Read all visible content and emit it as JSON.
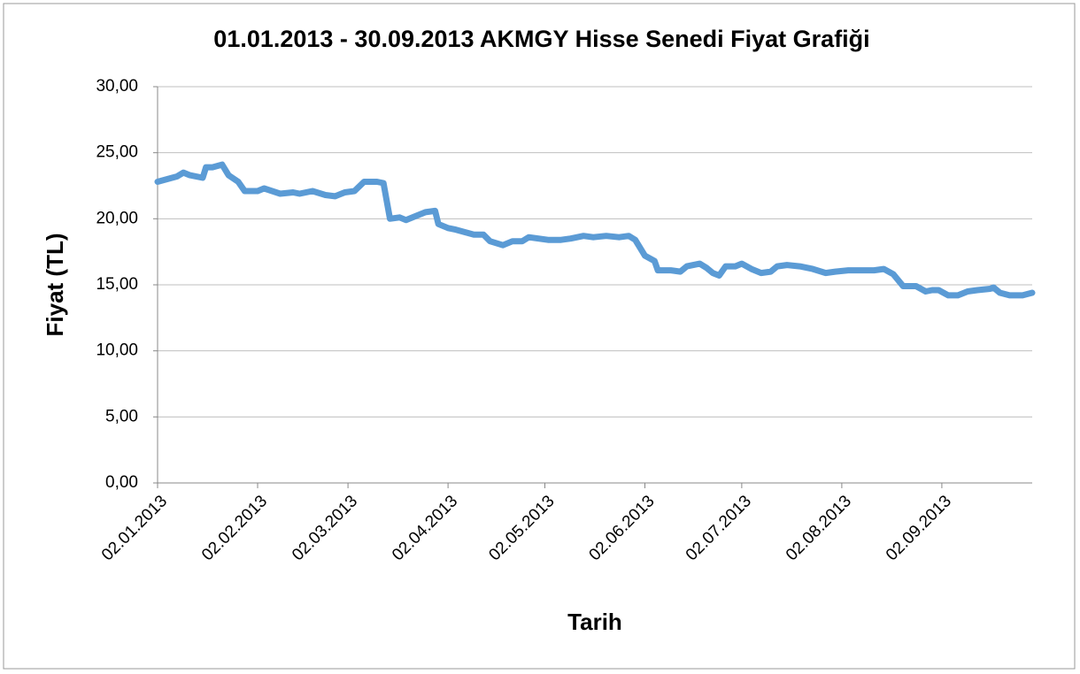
{
  "chart_data": {
    "type": "line",
    "title": "01.01.2013 - 30.09.2013 AKMGY Hisse Senedi Fiyat Grafiği",
    "x_label": "Tarih",
    "y_label": "Fiyat (TL)",
    "x": [
      "02.01.2013",
      "05.01.2013",
      "08.01.2013",
      "10.01.2013",
      "12.01.2013",
      "16.01.2013",
      "17.01.2013",
      "19.01.2013",
      "22.01.2013",
      "24.01.2013",
      "27.01.2013",
      "29.01.2013",
      "02.02.2013",
      "04.02.2013",
      "09.02.2013",
      "13.02.2013",
      "15.02.2013",
      "19.02.2013",
      "23.02.2013",
      "26.02.2013",
      "01.03.2013",
      "04.03.2013",
      "07.03.2013",
      "11.03.2013",
      "13.03.2013",
      "15.03.2013",
      "18.03.2013",
      "20.03.2013",
      "23.03.2013",
      "26.03.2013",
      "29.03.2013",
      "30.03.2013",
      "02.04.2013",
      "04.04.2013",
      "07.04.2013",
      "10.04.2013",
      "13.04.2013",
      "15.04.2013",
      "19.04.2013",
      "22.04.2013",
      "25.04.2013",
      "27.04.2013",
      "30.04.2013",
      "03.05.2013",
      "07.05.2013",
      "10.05.2013",
      "14.05.2013",
      "17.05.2013",
      "21.05.2013",
      "25.05.2013",
      "28.05.2013",
      "30.05.2013",
      "02.06.2013",
      "05.06.2013",
      "06.06.2013",
      "10.06.2013",
      "13.06.2013",
      "15.06.2013",
      "17.06.2013",
      "19.06.2013",
      "21.06.2013",
      "23.06.2013",
      "25.06.2013",
      "27.06.2013",
      "30.06.2013",
      "02.07.2013",
      "05.07.2013",
      "08.07.2013",
      "11.07.2013",
      "13.07.2013",
      "16.07.2013",
      "20.07.2013",
      "24.07.2013",
      "28.07.2013",
      "31.07.2013",
      "04.08.2013",
      "08.08.2013",
      "12.08.2013",
      "15.08.2013",
      "18.08.2013",
      "21.08.2013",
      "25.08.2013",
      "28.08.2013",
      "30.08.2013",
      "01.09.2013",
      "04.09.2013",
      "07.09.2013",
      "10.09.2013",
      "13.09.2013",
      "17.09.2013",
      "18.09.2013",
      "20.09.2013",
      "23.09.2013",
      "27.09.2013",
      "30.09.2013"
    ],
    "values": [
      22.8,
      23.0,
      23.2,
      23.5,
      23.3,
      23.1,
      23.9,
      23.9,
      24.1,
      23.3,
      22.8,
      22.1,
      22.1,
      22.3,
      21.9,
      22.0,
      21.9,
      22.1,
      21.8,
      21.7,
      22.0,
      22.1,
      22.8,
      22.8,
      22.7,
      20.0,
      20.1,
      19.9,
      20.2,
      20.5,
      20.6,
      19.6,
      19.3,
      19.2,
      19.0,
      18.8,
      18.8,
      18.3,
      18.0,
      18.3,
      18.3,
      18.6,
      18.5,
      18.4,
      18.4,
      18.5,
      18.7,
      18.6,
      18.7,
      18.6,
      18.7,
      18.4,
      17.2,
      16.8,
      16.1,
      16.1,
      16.0,
      16.4,
      16.5,
      16.6,
      16.3,
      15.9,
      15.7,
      16.4,
      16.4,
      16.6,
      16.2,
      15.9,
      16.0,
      16.4,
      16.5,
      16.4,
      16.2,
      15.9,
      16.0,
      16.1,
      16.1,
      16.1,
      16.2,
      15.8,
      14.9,
      14.9,
      14.5,
      14.6,
      14.6,
      14.2,
      14.2,
      14.5,
      14.6,
      14.7,
      14.8,
      14.4,
      14.2,
      14.2,
      14.4
    ],
    "color": "#5b9bd5",
    "xlim": [
      "02.01.2013",
      "30.09.2013"
    ],
    "xticks": [
      "02.01.2013",
      "02.02.2013",
      "02.03.2013",
      "02.04.2013",
      "02.05.2013",
      "02.06.2013",
      "02.07.2013",
      "02.08.2013",
      "02.09.2013"
    ],
    "ylim": [
      0,
      30
    ],
    "yticks": [
      {
        "value": 0,
        "label": "0,00"
      },
      {
        "value": 5,
        "label": "5,00"
      },
      {
        "value": 10,
        "label": "10,00"
      },
      {
        "value": 15,
        "label": "15,00"
      },
      {
        "value": 20,
        "label": "20,00"
      },
      {
        "value": 25,
        "label": "25,00"
      },
      {
        "value": 30,
        "label": "30,00"
      }
    ],
    "grid": true
  }
}
